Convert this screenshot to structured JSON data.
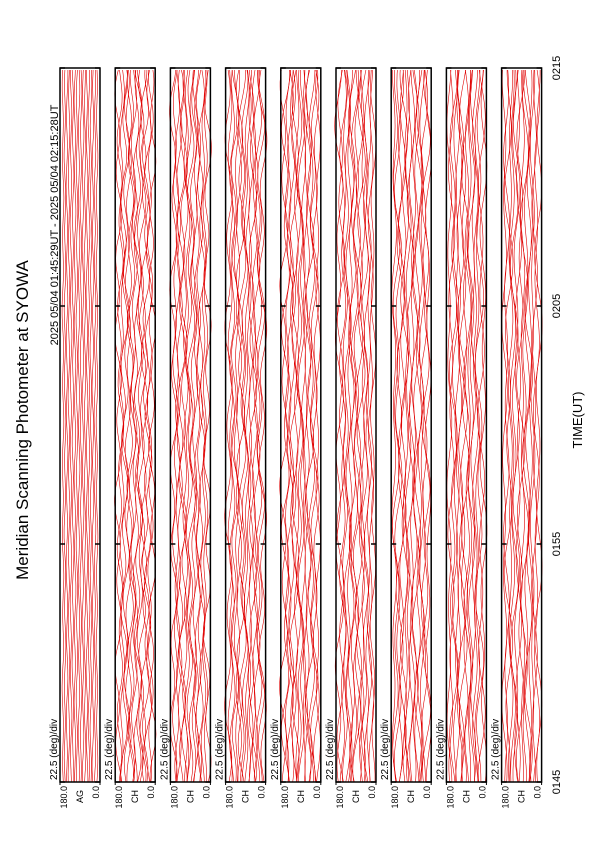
{
  "chart_data": {
    "type": "line",
    "title": "Meridian Scanning Photometer at SYOWA",
    "subtitle": "2025 05/04 01:45:29UT - 2025 05/04 02:15:28UT",
    "x_label": "TIME(UT)",
    "xlim": [
      0,
      30
    ],
    "xticks": [
      {
        "value": 0,
        "label": "0145"
      },
      {
        "value": 10,
        "label": "0155"
      },
      {
        "value": 20,
        "label": "0205"
      },
      {
        "value": 30,
        "label": "0215"
      }
    ],
    "color": "#e00000",
    "panels": [
      {
        "name": "AG",
        "scale_label": "22.5 (deg)/div",
        "ylim": [
          0,
          180
        ],
        "yticks": [
          {
            "value": 180,
            "label": "180.0"
          },
          {
            "value": 0,
            "label": "0.0"
          }
        ]
      },
      {
        "name": "CH",
        "scale_label": "22.5 (deg)/div",
        "ylim": [
          0,
          180
        ],
        "yticks": [
          {
            "value": 180,
            "label": "180.0"
          },
          {
            "value": 0,
            "label": "0.0"
          }
        ]
      },
      {
        "name": "CH",
        "scale_label": "22.5 (deg)/div",
        "ylim": [
          0,
          180
        ],
        "yticks": [
          {
            "value": 180,
            "label": "180.0"
          },
          {
            "value": 0,
            "label": "0.0"
          }
        ]
      },
      {
        "name": "CH",
        "scale_label": "22.5 (deg)/div",
        "ylim": [
          0,
          180
        ],
        "yticks": [
          {
            "value": 180,
            "label": "180.0"
          },
          {
            "value": 0,
            "label": "0.0"
          }
        ]
      },
      {
        "name": "CH",
        "scale_label": "22.5 (deg)/div",
        "ylim": [
          0,
          180
        ],
        "yticks": [
          {
            "value": 180,
            "label": "180.0"
          },
          {
            "value": 0,
            "label": "0.0"
          }
        ]
      },
      {
        "name": "CH",
        "scale_label": "22.5 (deg)/div",
        "ylim": [
          0,
          180
        ],
        "yticks": [
          {
            "value": 180,
            "label": "180.0"
          },
          {
            "value": 0,
            "label": "0.0"
          }
        ]
      },
      {
        "name": "CH",
        "scale_label": "22.5 (deg)/div",
        "ylim": [
          0,
          180
        ],
        "yticks": [
          {
            "value": 180,
            "label": "180.0"
          },
          {
            "value": 0,
            "label": "0.0"
          }
        ]
      },
      {
        "name": "CH",
        "scale_label": "22.5 (deg)/div",
        "ylim": [
          0,
          180
        ],
        "yticks": [
          {
            "value": 180,
            "label": "180.0"
          },
          {
            "value": 0,
            "label": "0.0"
          }
        ]
      },
      {
        "name": "CH",
        "scale_label": "22.5 (deg)/div",
        "ylim": [
          0,
          180
        ],
        "yticks": [
          {
            "value": 180,
            "label": "180.0"
          },
          {
            "value": 0,
            "label": "0.0"
          }
        ]
      }
    ]
  }
}
